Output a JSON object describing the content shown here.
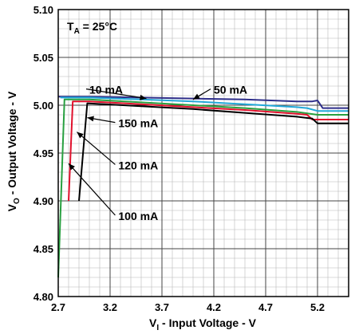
{
  "chart_data": {
    "type": "line",
    "xlabel": {
      "main": "V",
      "sub": "I",
      "rest": " - Input Voltage - V"
    },
    "ylabel": {
      "main": "V",
      "sub": "O",
      "rest": " - Output Voltage - V"
    },
    "xlim": [
      2.7,
      5.5
    ],
    "ylim": [
      4.8,
      5.1
    ],
    "x_ticks": [
      2.7,
      3.2,
      3.7,
      4.2,
      4.7,
      5.2
    ],
    "y_ticks": [
      4.8,
      4.85,
      4.9,
      4.95,
      5.0,
      5.05,
      5.1
    ],
    "x_minor_step": 0.1,
    "y_minor_step": 0.01,
    "grid": true,
    "temperature_label": {
      "main": "T",
      "sub": "A",
      "rest": " = 25°C"
    },
    "series": [
      {
        "name": "10 mA",
        "color": "#2e2e8a",
        "points": [
          [
            2.7,
            5.009
          ],
          [
            3.0,
            5.009
          ],
          [
            3.5,
            5.008
          ],
          [
            4.0,
            5.007
          ],
          [
            4.5,
            5.006
          ],
          [
            5.0,
            5.004
          ],
          [
            5.15,
            5.004
          ],
          [
            5.2,
            5.005
          ],
          [
            5.25,
            4.997
          ],
          [
            5.5,
            4.997
          ]
        ]
      },
      {
        "name": "50 mA",
        "color": "#22a8d8",
        "points": [
          [
            2.72,
            5.008
          ],
          [
            3.0,
            5.008
          ],
          [
            3.5,
            5.006
          ],
          [
            4.0,
            5.004
          ],
          [
            4.5,
            5.001
          ],
          [
            5.0,
            4.998
          ],
          [
            5.1,
            4.997
          ],
          [
            5.2,
            4.994
          ],
          [
            5.5,
            4.994
          ]
        ]
      },
      {
        "name": "120 mA",
        "color": "#28a040",
        "points": [
          [
            2.7,
            4.82
          ],
          [
            2.76,
            5.006
          ],
          [
            3.0,
            5.006
          ],
          [
            3.5,
            5.003
          ],
          [
            4.0,
            5.0
          ],
          [
            4.5,
            4.997
          ],
          [
            5.0,
            4.993
          ],
          [
            5.2,
            4.99
          ],
          [
            5.5,
            4.99
          ]
        ]
      },
      {
        "name": "100 mA",
        "color": "#e0102c",
        "points": [
          [
            2.8,
            4.9
          ],
          [
            2.84,
            5.004
          ],
          [
            3.0,
            5.004
          ],
          [
            3.5,
            5.001
          ],
          [
            4.0,
            4.998
          ],
          [
            4.5,
            4.995
          ],
          [
            5.0,
            4.991
          ],
          [
            5.1,
            4.99
          ],
          [
            5.15,
            4.985
          ],
          [
            5.5,
            4.985
          ]
        ]
      },
      {
        "name": "150 mA",
        "color": "#000000",
        "points": [
          [
            2.9,
            4.9
          ],
          [
            2.98,
            5.002
          ],
          [
            3.5,
            4.999
          ],
          [
            4.0,
            4.996
          ],
          [
            4.5,
            4.992
          ],
          [
            5.0,
            4.988
          ],
          [
            5.15,
            4.986
          ],
          [
            5.2,
            4.981
          ],
          [
            5.5,
            4.981
          ]
        ]
      }
    ],
    "annotations": [
      {
        "text": "10 mA",
        "at": [
          3.0,
          5.012
        ],
        "arrow_to": [
          3.55,
          5.007
        ]
      },
      {
        "text": "50 mA",
        "at": [
          4.2,
          5.012
        ],
        "arrow_to": [
          4.0,
          5.006
        ]
      },
      {
        "text": "150 mA",
        "at": [
          3.28,
          4.977
        ],
        "arrow_to": [
          2.98,
          4.987
        ]
      },
      {
        "text": "120 mA",
        "at": [
          3.28,
          4.933
        ],
        "arrow_to": [
          2.88,
          4.972
        ]
      },
      {
        "text": "100 mA",
        "at": [
          3.28,
          4.88
        ],
        "arrow_to": [
          2.8,
          4.939
        ]
      }
    ]
  }
}
